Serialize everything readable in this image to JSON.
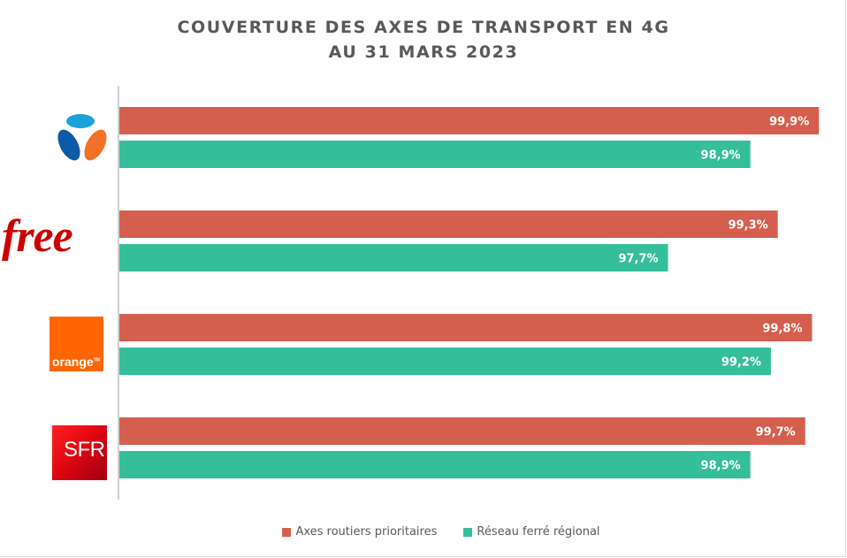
{
  "chart_data": {
    "type": "bar",
    "orientation": "horizontal",
    "title": "COUVERTURE DES AXES DE TRANSPORT EN 4G",
    "subtitle": "AU 31 MARS 2023",
    "categories": [
      "Bouygues Telecom",
      "Free",
      "Orange",
      "SFR"
    ],
    "series": [
      {
        "name": "Axes routiers prioritaires",
        "color": "#d55f4e",
        "values": [
          99.9,
          99.3,
          99.8,
          99.7
        ],
        "labels": [
          "99,9%",
          "99,3%",
          "99,8%",
          "99,7%"
        ]
      },
      {
        "name": "Réseau ferré régional",
        "color": "#35be9a",
        "values": [
          98.9,
          97.7,
          99.2,
          98.9
        ],
        "labels": [
          "98,9%",
          "97,7%",
          "99,2%",
          "98,9%"
        ]
      }
    ],
    "xlabel": "",
    "ylabel": "",
    "xlim": [
      89.7,
      100
    ],
    "grid": false,
    "axis_tick_labels_visible": false,
    "legend_position": "bottom"
  },
  "logos": {
    "bouygues": {
      "name": "bouygues-logo",
      "colors": [
        "#1aa3d8",
        "#0e5aa7",
        "#f27127"
      ]
    },
    "free": {
      "text": "free",
      "color": "#cc0000"
    },
    "orange": {
      "text": "orange",
      "tm": "TM",
      "color": "#ff6600"
    },
    "sfr": {
      "text": "SFR",
      "color": "#e30613"
    }
  }
}
